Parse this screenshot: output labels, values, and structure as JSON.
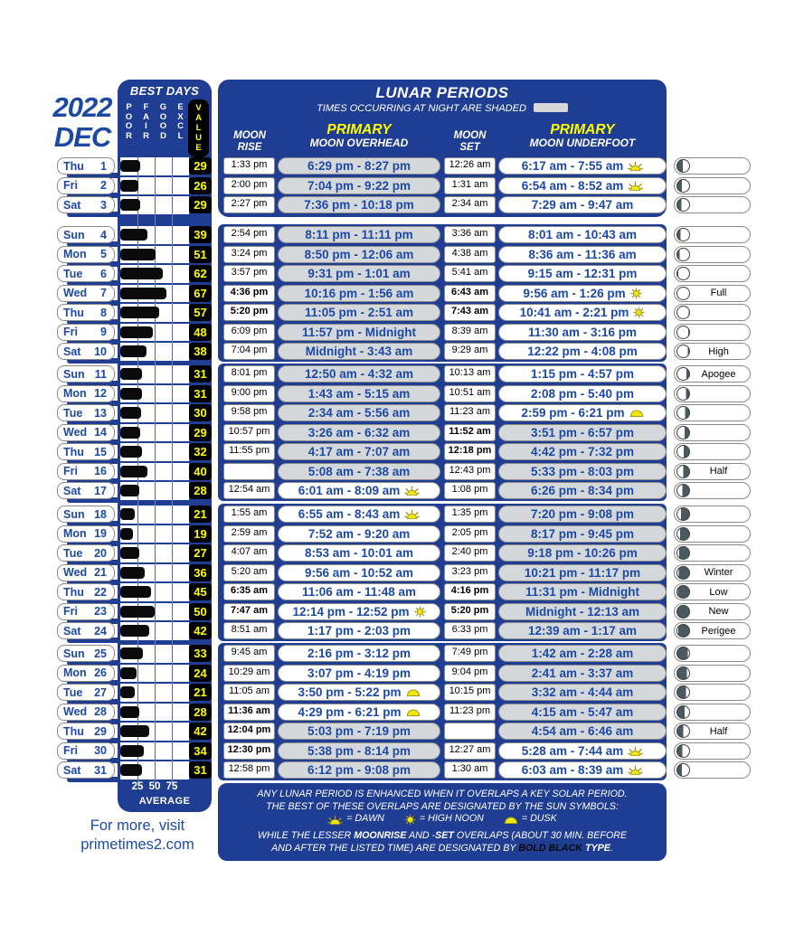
{
  "title": {
    "year": "2022",
    "month": "DEC"
  },
  "best_days": {
    "title": "BEST DAYS",
    "ratings": [
      "POOR",
      "FAIR",
      "GOOD",
      "EXCL"
    ],
    "value": "VALUE",
    "scale": "25 50 75",
    "average": "AVERAGE"
  },
  "lunar": {
    "title": "LUNAR PERIODS",
    "subtitle": "TIMES OCCURRING AT NIGHT ARE SHADED",
    "rise_l1": "MOON",
    "rise_l2": "RISE",
    "set_l1": "MOON",
    "set_l2": "SET",
    "primary": "PRIMARY",
    "overhead": "MOON OVERHEAD",
    "underfoot": "MOON UNDERFOOT"
  },
  "notes": {
    "line1": "ANY LUNAR PERIOD IS ENHANCED WHEN IT OVERLAPS A KEY SOLAR PERIOD.",
    "line2": "THE BEST OF THESE OVERLAPS ARE DESIGNATED BY THE SUN SYMBOLS:",
    "legend": [
      {
        "type": "dawn",
        "label": "= DAWN"
      },
      {
        "type": "noon",
        "label": "= HIGH NOON"
      },
      {
        "type": "dusk",
        "label": "= DUSK"
      }
    ],
    "line3": [
      [
        "WHILE THE LESSER ",
        ""
      ],
      [
        "MOONRISE",
        "b"
      ],
      [
        " AND -",
        ""
      ],
      [
        "SET",
        "b"
      ],
      [
        " OVERLAPS (ABOUT 30 MIN. BEFORE",
        ""
      ]
    ],
    "line4": [
      [
        "AND AFTER THE LISTED TIME) ARE DESIGNATED BY ",
        ""
      ],
      [
        "BOLD BLACK",
        "bb"
      ],
      [
        " ",
        ""
      ],
      [
        "TYPE",
        "b"
      ],
      [
        ".",
        ""
      ]
    ]
  },
  "footer": {
    "line1": "For more, visit",
    "line2": "primetimes2.com"
  },
  "colors": {
    "panel_blue": "#203d94",
    "text_blue": "#1d49a6",
    "night_gray": "#d5d8da",
    "value_yellow": "#ffff00",
    "sun_yellow": "#f2e70c",
    "moon_dark": "#4a5a61"
  },
  "weeks": [
    [
      {
        "day": "Thu",
        "date": "1",
        "value": 29,
        "rise": "1:33 pm",
        "rise_bold": false,
        "oh": "6:29 pm - 8:27 pm",
        "oh_night": true,
        "oh_sun": null,
        "set": "12:26 am",
        "set_bold": false,
        "uf": "6:17 am - 7:55 am",
        "uf_night": false,
        "uf_sun": "dawn",
        "moon_dark": 45,
        "moon_side": "left",
        "moon_label": ""
      },
      {
        "day": "Fri",
        "date": "2",
        "value": 26,
        "rise": "2:00 pm",
        "rise_bold": false,
        "oh": "7:04 pm - 9:22 pm",
        "oh_night": true,
        "oh_sun": null,
        "set": "1:31 am",
        "set_bold": false,
        "uf": "6:54 am - 8:52 am",
        "uf_night": false,
        "uf_sun": "dawn",
        "moon_dark": 40,
        "moon_side": "left",
        "moon_label": ""
      },
      {
        "day": "Sat",
        "date": "3",
        "value": 29,
        "rise": "2:27 pm",
        "rise_bold": false,
        "oh": "7:36 pm - 10:18 pm",
        "oh_night": true,
        "oh_sun": null,
        "set": "2:34 am",
        "set_bold": false,
        "uf": "7:29 am - 9:47 am",
        "uf_night": false,
        "uf_sun": null,
        "moon_dark": 34,
        "moon_side": "left",
        "moon_label": ""
      }
    ],
    [
      {
        "day": "Sun",
        "date": "4",
        "value": 39,
        "rise": "2:54 pm",
        "rise_bold": false,
        "oh": "8:11 pm - 11:11 pm",
        "oh_night": true,
        "oh_sun": null,
        "set": "3:36 am",
        "set_bold": false,
        "uf": "8:01 am - 10:43 am",
        "uf_night": false,
        "uf_sun": null,
        "moon_dark": 28,
        "moon_side": "left",
        "moon_label": ""
      },
      {
        "day": "Mon",
        "date": "5",
        "value": 51,
        "rise": "3:24 pm",
        "rise_bold": false,
        "oh": "8:50 pm - 12:06 am",
        "oh_night": true,
        "oh_sun": null,
        "set": "4:38 am",
        "set_bold": false,
        "uf": "8:36 am - 11:36 am",
        "uf_night": false,
        "uf_sun": null,
        "moon_dark": 18,
        "moon_side": "left",
        "moon_label": ""
      },
      {
        "day": "Tue",
        "date": "6",
        "value": 62,
        "rise": "3:57 pm",
        "rise_bold": false,
        "oh": "9:31 pm - 1:01 am",
        "oh_night": true,
        "oh_sun": null,
        "set": "5:41 am",
        "set_bold": false,
        "uf": "9:15 am - 12:31 pm",
        "uf_night": false,
        "uf_sun": null,
        "moon_dark": 8,
        "moon_side": "left",
        "moon_label": ""
      },
      {
        "day": "Wed",
        "date": "7",
        "value": 67,
        "rise": "4:36 pm",
        "rise_bold": true,
        "oh": "10:16 pm - 1:56 am",
        "oh_night": true,
        "oh_sun": null,
        "set": "6:43 am",
        "set_bold": true,
        "uf": "9:56 am - 1:26 pm",
        "uf_night": false,
        "uf_sun": "noon",
        "moon_dark": 0,
        "moon_side": "left",
        "moon_label": "Full"
      },
      {
        "day": "Thu",
        "date": "8",
        "value": 57,
        "rise": "5:20 pm",
        "rise_bold": true,
        "oh": "11:05 pm - 2:51 am",
        "oh_night": true,
        "oh_sun": null,
        "set": "7:43 am",
        "set_bold": true,
        "uf": "10:41 am - 2:21 pm",
        "uf_night": false,
        "uf_sun": "noon",
        "moon_dark": 4,
        "moon_side": "right",
        "moon_label": ""
      },
      {
        "day": "Fri",
        "date": "9",
        "value": 48,
        "rise": "6:09 pm",
        "rise_bold": false,
        "oh": "11:57 pm - Midnight",
        "oh_night": true,
        "oh_sun": null,
        "set": "8:39 am",
        "set_bold": false,
        "uf": "11:30 am - 3:16 pm",
        "uf_night": false,
        "uf_sun": null,
        "moon_dark": 8,
        "moon_side": "right",
        "moon_label": ""
      },
      {
        "day": "Sat",
        "date": "10",
        "value": 38,
        "rise": "7:04 pm",
        "rise_bold": false,
        "oh": "Midnight - 3:43 am",
        "oh_night": true,
        "oh_sun": null,
        "set": "9:29 am",
        "set_bold": false,
        "uf": "12:22 pm - 4:08 pm",
        "uf_night": false,
        "uf_sun": null,
        "moon_dark": 12,
        "moon_side": "right",
        "moon_label": "High"
      }
    ],
    [
      {
        "day": "Sun",
        "date": "11",
        "value": 31,
        "rise": "8:01 pm",
        "rise_bold": false,
        "oh": "12:50 am - 4:32 am",
        "oh_night": true,
        "oh_sun": null,
        "set": "10:13 am",
        "set_bold": false,
        "uf": "1:15 pm - 4:57 pm",
        "uf_night": false,
        "uf_sun": null,
        "moon_dark": 22,
        "moon_side": "right",
        "moon_label": "Apogee"
      },
      {
        "day": "Mon",
        "date": "12",
        "value": 31,
        "rise": "9:00 pm",
        "rise_bold": false,
        "oh": "1:43 am - 5:15 am",
        "oh_night": true,
        "oh_sun": null,
        "set": "10:51 am",
        "set_bold": false,
        "uf": "2:08 pm - 5:40 pm",
        "uf_night": false,
        "uf_sun": null,
        "moon_dark": 28,
        "moon_side": "right",
        "moon_label": ""
      },
      {
        "day": "Tue",
        "date": "13",
        "value": 30,
        "rise": "9:58 pm",
        "rise_bold": false,
        "oh": "2:34 am - 5:56 am",
        "oh_night": true,
        "oh_sun": null,
        "set": "11:23 am",
        "set_bold": false,
        "uf": "2:59 pm - 6:21 pm",
        "uf_night": false,
        "uf_sun": "dusk",
        "moon_dark": 34,
        "moon_side": "right",
        "moon_label": ""
      },
      {
        "day": "Wed",
        "date": "14",
        "value": 29,
        "rise": "10:57 pm",
        "rise_bold": false,
        "oh": "3:26 am - 6:32 am",
        "oh_night": true,
        "oh_sun": null,
        "set": "11:52 am",
        "set_bold": true,
        "uf": "3:51 pm - 6:57 pm",
        "uf_night": true,
        "uf_sun": null,
        "moon_dark": 40,
        "moon_side": "right",
        "moon_label": ""
      },
      {
        "day": "Thu",
        "date": "15",
        "value": 32,
        "rise": "11:55 pm",
        "rise_bold": false,
        "oh": "4:17 am - 7:07 am",
        "oh_night": true,
        "oh_sun": null,
        "set": "12:18 pm",
        "set_bold": true,
        "uf": "4:42 pm - 7:32 pm",
        "uf_night": true,
        "uf_sun": null,
        "moon_dark": 45,
        "moon_side": "right",
        "moon_label": ""
      },
      {
        "day": "Fri",
        "date": "16",
        "value": 40,
        "rise": "",
        "rise_bold": false,
        "oh": "5:08 am - 7:38 am",
        "oh_night": true,
        "oh_sun": null,
        "set": "12:43 pm",
        "set_bold": false,
        "uf": "5:33 pm - 8:03 pm",
        "uf_night": true,
        "uf_sun": null,
        "moon_dark": 50,
        "moon_side": "right",
        "moon_label": "Half"
      },
      {
        "day": "Sat",
        "date": "17",
        "value": 28,
        "rise": "12:54 am",
        "rise_bold": false,
        "oh": "6:01 am - 8:09 am",
        "oh_night": false,
        "oh_sun": "dawn",
        "set": "1:08 pm",
        "set_bold": false,
        "uf": "6:26 pm - 8:34 pm",
        "uf_night": true,
        "uf_sun": null,
        "moon_dark": 58,
        "moon_side": "right",
        "moon_label": ""
      }
    ],
    [
      {
        "day": "Sun",
        "date": "18",
        "value": 21,
        "rise": "1:55 am",
        "rise_bold": false,
        "oh": "6:55 am - 8:43 am",
        "oh_night": false,
        "oh_sun": "dawn",
        "set": "1:35 pm",
        "set_bold": false,
        "uf": "7:20 pm - 9:08 pm",
        "uf_night": true,
        "uf_sun": null,
        "moon_dark": 70,
        "moon_side": "right",
        "moon_label": ""
      },
      {
        "day": "Mon",
        "date": "19",
        "value": 19,
        "rise": "2:59 am",
        "rise_bold": false,
        "oh": "7:52 am - 9:20 am",
        "oh_night": false,
        "oh_sun": null,
        "set": "2:05 pm",
        "set_bold": false,
        "uf": "8:17 pm - 9:45 pm",
        "uf_night": true,
        "uf_sun": null,
        "moon_dark": 78,
        "moon_side": "right",
        "moon_label": ""
      },
      {
        "day": "Tue",
        "date": "20",
        "value": 27,
        "rise": "4:07 am",
        "rise_bold": false,
        "oh": "8:53 am - 10:01 am",
        "oh_night": false,
        "oh_sun": null,
        "set": "2:40 pm",
        "set_bold": false,
        "uf": "9:18 pm - 10:26 pm",
        "uf_night": true,
        "uf_sun": null,
        "moon_dark": 84,
        "moon_side": "right",
        "moon_label": ""
      },
      {
        "day": "Wed",
        "date": "21",
        "value": 36,
        "rise": "5:20 am",
        "rise_bold": false,
        "oh": "9:56 am - 10:52 am",
        "oh_night": false,
        "oh_sun": null,
        "set": "3:23 pm",
        "set_bold": false,
        "uf": "10:21 pm - 11:17 pm",
        "uf_night": true,
        "uf_sun": null,
        "moon_dark": 90,
        "moon_side": "right",
        "moon_label": "Winter"
      },
      {
        "day": "Thu",
        "date": "22",
        "value": 45,
        "rise": "6:35 am",
        "rise_bold": true,
        "oh": "11:06 am - 11:48 am",
        "oh_night": false,
        "oh_sun": null,
        "set": "4:16 pm",
        "set_bold": true,
        "uf": "11:31 pm - Midnight",
        "uf_night": true,
        "uf_sun": null,
        "moon_dark": 97,
        "moon_side": "right",
        "moon_label": "Low"
      },
      {
        "day": "Fri",
        "date": "23",
        "value": 50,
        "rise": "7:47 am",
        "rise_bold": true,
        "oh": "12:14 pm - 12:52 pm",
        "oh_night": false,
        "oh_sun": "noon",
        "set": "5:20 pm",
        "set_bold": true,
        "uf": "Midnight - 12:13 am",
        "uf_night": true,
        "uf_sun": null,
        "moon_dark": 100,
        "moon_side": "right",
        "moon_label": "New"
      },
      {
        "day": "Sat",
        "date": "24",
        "value": 42,
        "rise": "8:51 am",
        "rise_bold": false,
        "oh": "1:17 pm - 2:03 pm",
        "oh_night": false,
        "oh_sun": null,
        "set": "6:33 pm",
        "set_bold": false,
        "uf": "12:39 am - 1:17 am",
        "uf_night": true,
        "uf_sun": null,
        "moon_dark": 92,
        "moon_side": "right",
        "moon_label": "Perigee"
      }
    ],
    [
      {
        "day": "Sun",
        "date": "25",
        "value": 33,
        "rise": "9:45 am",
        "rise_bold": false,
        "oh": "2:16 pm - 3:12 pm",
        "oh_night": false,
        "oh_sun": null,
        "set": "7:49 pm",
        "set_bold": false,
        "uf": "1:42 am - 2:28 am",
        "uf_night": true,
        "uf_sun": null,
        "moon_dark": 88,
        "moon_side": "left",
        "moon_label": ""
      },
      {
        "day": "Mon",
        "date": "26",
        "value": 24,
        "rise": "10:29 am",
        "rise_bold": false,
        "oh": "3:07 pm - 4:19 pm",
        "oh_night": false,
        "oh_sun": null,
        "set": "9:04 pm",
        "set_bold": false,
        "uf": "2:41 am - 3:37 am",
        "uf_night": true,
        "uf_sun": null,
        "moon_dark": 80,
        "moon_side": "left",
        "moon_label": ""
      },
      {
        "day": "Tue",
        "date": "27",
        "value": 21,
        "rise": "11:05 am",
        "rise_bold": false,
        "oh": "3:50 pm - 5:22 pm",
        "oh_night": false,
        "oh_sun": "dusk",
        "set": "10:15 pm",
        "set_bold": false,
        "uf": "3:32 am - 4:44 am",
        "uf_night": true,
        "uf_sun": null,
        "moon_dark": 72,
        "moon_side": "left",
        "moon_label": ""
      },
      {
        "day": "Wed",
        "date": "28",
        "value": 28,
        "rise": "11:36 am",
        "rise_bold": true,
        "oh": "4:29 pm - 6:21 pm",
        "oh_night": false,
        "oh_sun": "dusk",
        "set": "11:23 pm",
        "set_bold": false,
        "uf": "4:15 am - 5:47 am",
        "uf_night": true,
        "uf_sun": null,
        "moon_dark": 62,
        "moon_side": "left",
        "moon_label": ""
      },
      {
        "day": "Thu",
        "date": "29",
        "value": 42,
        "rise": "12:04 pm",
        "rise_bold": true,
        "oh": "5:03 pm - 7:19 pm",
        "oh_night": true,
        "oh_sun": null,
        "set": "",
        "set_bold": false,
        "uf": "4:54 am - 6:46 am",
        "uf_night": true,
        "uf_sun": null,
        "moon_dark": 50,
        "moon_side": "left",
        "moon_label": "Half"
      },
      {
        "day": "Fri",
        "date": "30",
        "value": 34,
        "rise": "12:30 pm",
        "rise_bold": true,
        "oh": "5:38 pm - 8:14 pm",
        "oh_night": true,
        "oh_sun": null,
        "set": "12:27 am",
        "set_bold": false,
        "uf": "5:28 am - 7:44 am",
        "uf_night": false,
        "uf_sun": "dawn",
        "moon_dark": 44,
        "moon_side": "left",
        "moon_label": ""
      },
      {
        "day": "Sat",
        "date": "31",
        "value": 31,
        "rise": "12:58 pm",
        "rise_bold": false,
        "oh": "6:12 pm - 9:08 pm",
        "oh_night": true,
        "oh_sun": null,
        "set": "1:30 am",
        "set_bold": false,
        "uf": "6:03 am - 8:39 am",
        "uf_night": false,
        "uf_sun": "dawn",
        "moon_dark": 38,
        "moon_side": "left",
        "moon_label": ""
      }
    ]
  ]
}
